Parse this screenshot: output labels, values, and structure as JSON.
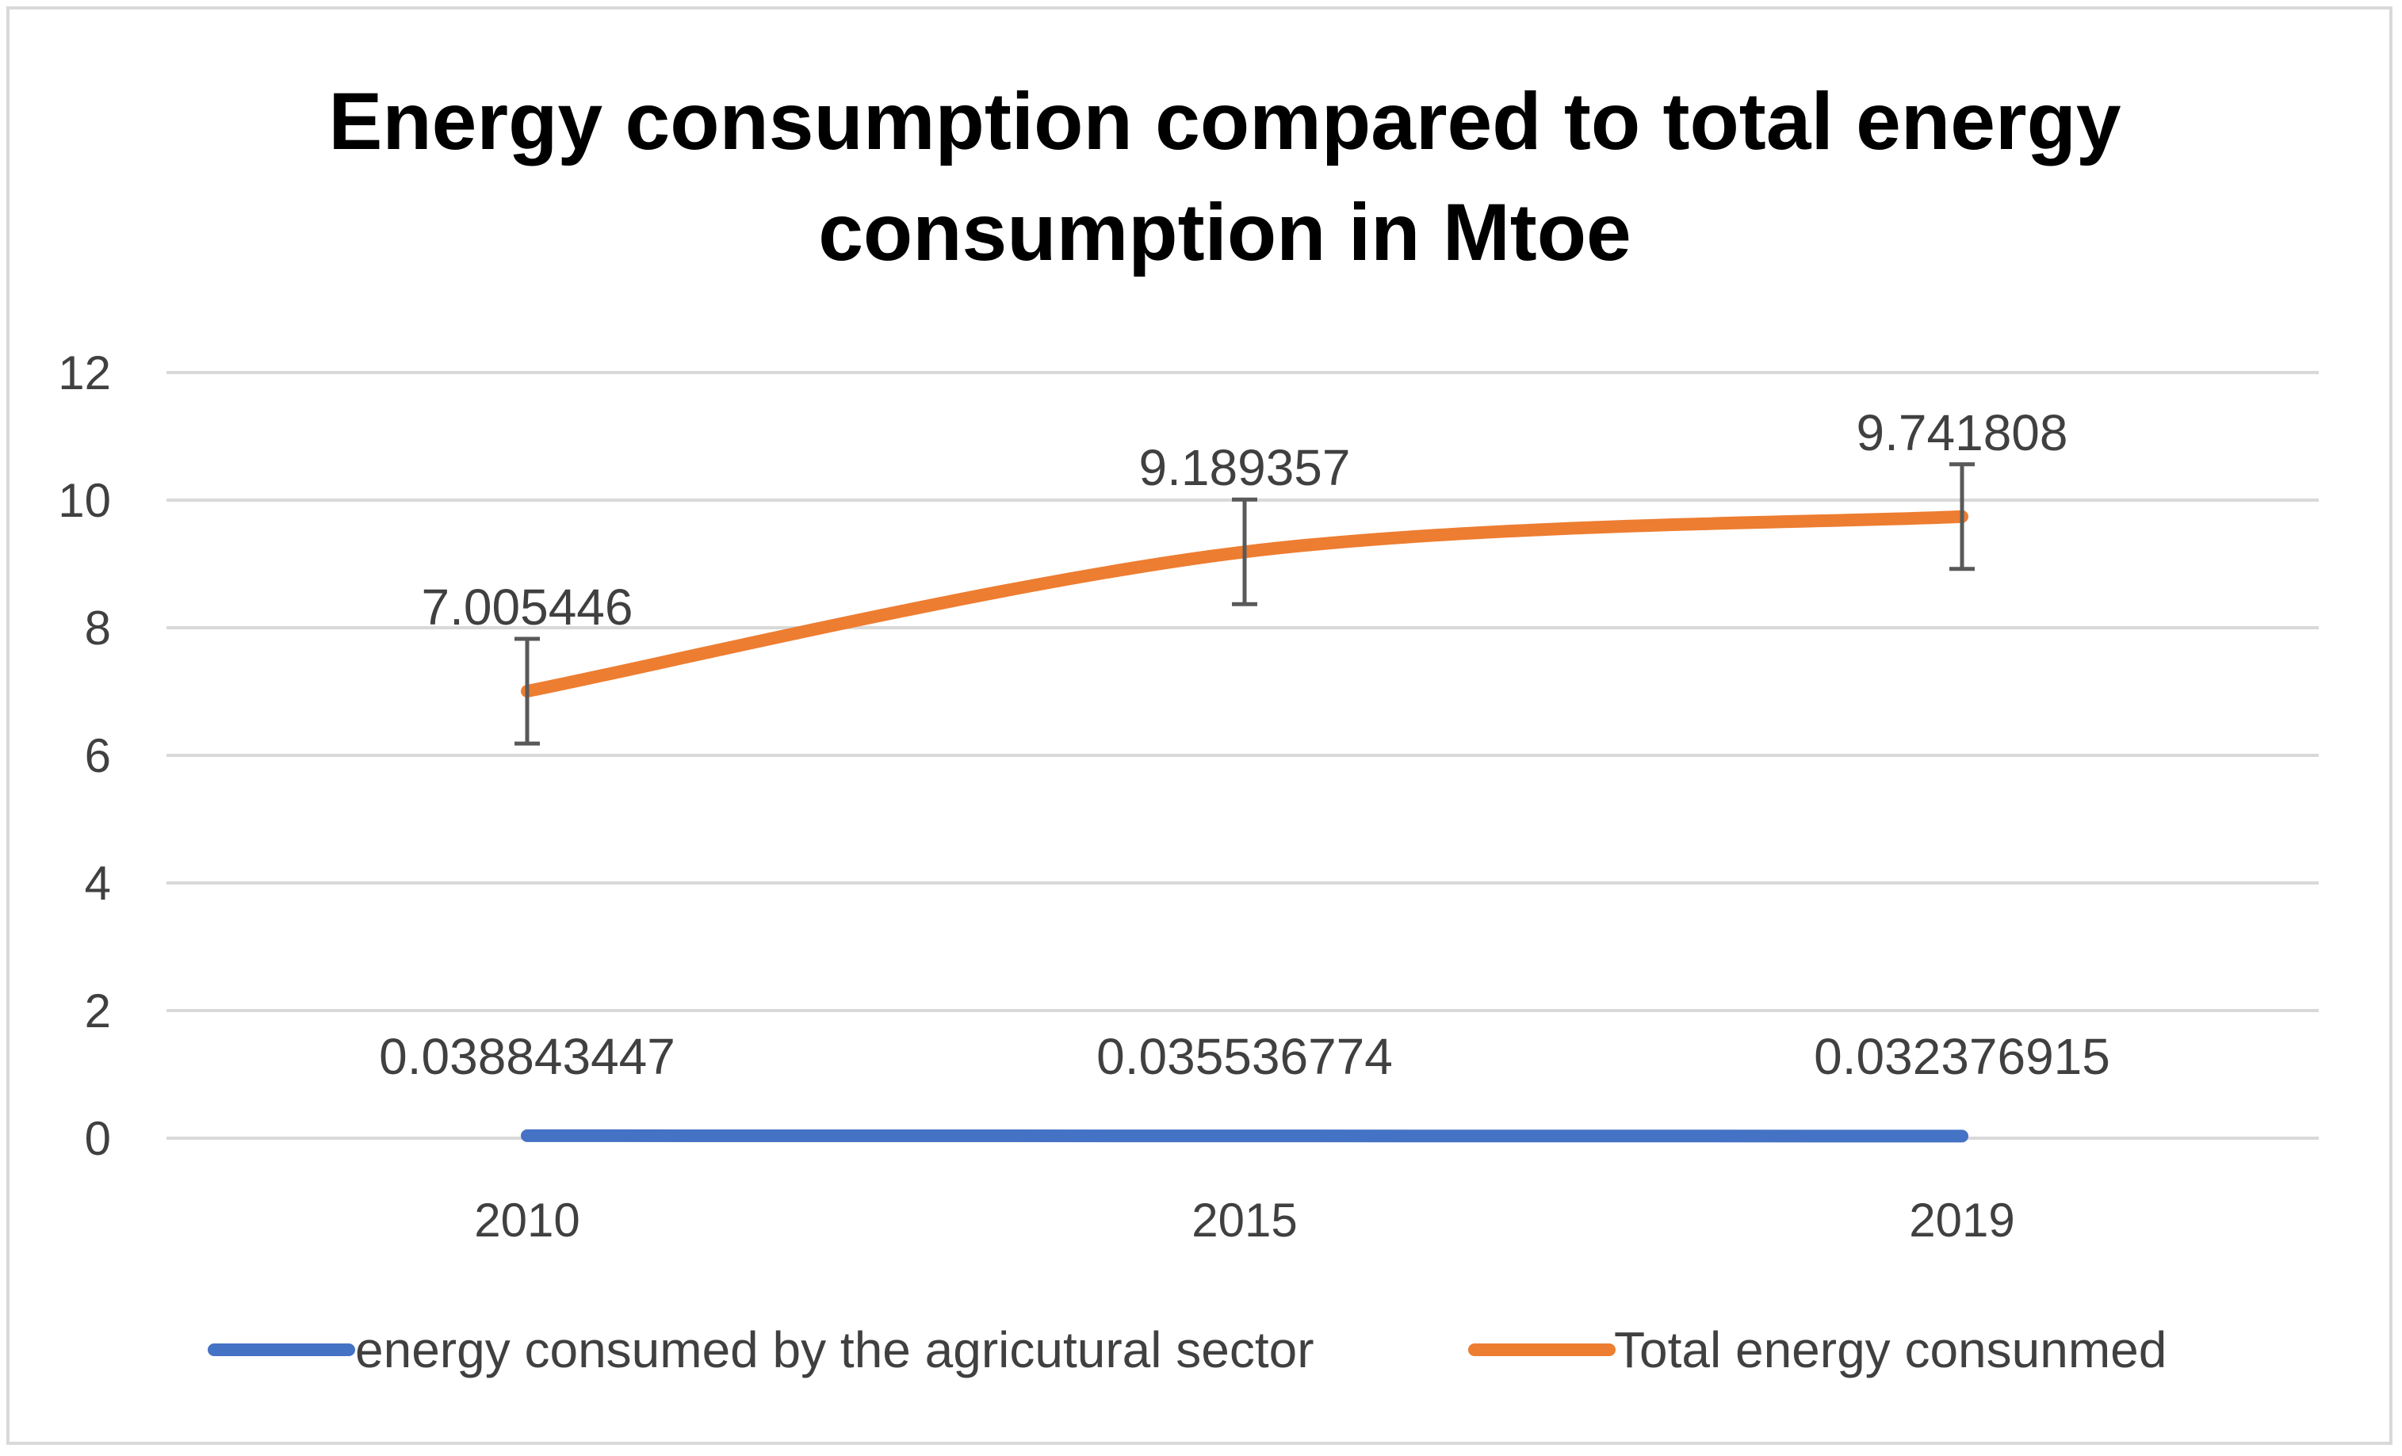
{
  "chart_data": {
    "type": "line",
    "title_lines": [
      "Energy consumption compared to total energy",
      "consumption in  Mtoe"
    ],
    "categories": [
      "2010",
      "2015",
      "2019"
    ],
    "ylim": [
      0,
      12
    ],
    "yticks": [
      "0",
      "2",
      "4",
      "6",
      "8",
      "10",
      "12"
    ],
    "grid": true,
    "legend_position": "bottom",
    "series": [
      {
        "name": "energy consumed by the agricutural sector",
        "values": [
          0.038843447,
          0.035536774,
          0.032376915
        ],
        "labels": [
          "0.038843447",
          "0.035536774",
          "0.032376915"
        ],
        "color": "#4472C4"
      },
      {
        "name": "Total energy consunmed",
        "values": [
          7.005446,
          9.189357,
          9.741808
        ],
        "labels": [
          "7.005446",
          "9.189357",
          "9.741808"
        ],
        "color": "#ED7D31",
        "error_bar": 0.82
      }
    ]
  }
}
